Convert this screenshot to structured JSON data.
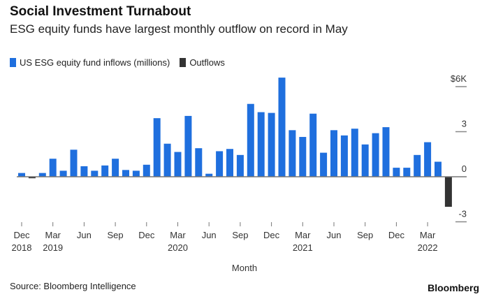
{
  "chart_data": {
    "type": "bar",
    "title": "Social Investment Turnabout",
    "subtitle": "ESG equity funds have largest monthly outflow on record in May",
    "legend": [
      {
        "name": "US ESG equity fund inflows (millions)",
        "color": "#1f6fde"
      },
      {
        "name": "Outflows",
        "color": "#333333"
      }
    ],
    "xlabel": "Month",
    "ylabel": "",
    "ylim": [
      -3,
      6
    ],
    "y_ticks": [
      {
        "value": 6,
        "label": "$6K"
      },
      {
        "value": 3,
        "label": "3"
      },
      {
        "value": 0,
        "label": "0"
      },
      {
        "value": -3,
        "label": "-3"
      }
    ],
    "x_ticks": [
      {
        "index": 0,
        "label": "Dec",
        "year": "2018"
      },
      {
        "index": 3,
        "label": "Mar",
        "year": "2019"
      },
      {
        "index": 6,
        "label": "Jun"
      },
      {
        "index": 9,
        "label": "Sep"
      },
      {
        "index": 12,
        "label": "Dec"
      },
      {
        "index": 15,
        "label": "Mar",
        "year": "2020"
      },
      {
        "index": 18,
        "label": "Jun"
      },
      {
        "index": 21,
        "label": "Sep"
      },
      {
        "index": 24,
        "label": "Dec"
      },
      {
        "index": 27,
        "label": "Mar",
        "year": "2021"
      },
      {
        "index": 30,
        "label": "Jun"
      },
      {
        "index": 33,
        "label": "Sep"
      },
      {
        "index": 36,
        "label": "Dec"
      },
      {
        "index": 39,
        "label": "Mar",
        "year": "2022"
      }
    ],
    "categories": [
      "Dec 2018",
      "Jan 2019",
      "Feb 2019",
      "Mar 2019",
      "Apr 2019",
      "May 2019",
      "Jun 2019",
      "Jul 2019",
      "Aug 2019",
      "Sep 2019",
      "Oct 2019",
      "Nov 2019",
      "Dec 2019",
      "Jan 2020",
      "Feb 2020",
      "Mar 2020",
      "Apr 2020",
      "May 2020",
      "Jun 2020",
      "Jul 2020",
      "Aug 2020",
      "Sep 2020",
      "Oct 2020",
      "Nov 2020",
      "Dec 2020",
      "Jan 2021",
      "Feb 2021",
      "Mar 2021",
      "Apr 2021",
      "May 2021",
      "Jun 2021",
      "Jul 2021",
      "Aug 2021",
      "Sep 2021",
      "Oct 2021",
      "Nov 2021",
      "Dec 2021",
      "Jan 2022",
      "Feb 2022",
      "Mar 2022",
      "Apr 2022",
      "May 2022"
    ],
    "values": [
      0.25,
      -0.1,
      0.25,
      1.2,
      0.4,
      1.8,
      0.7,
      0.4,
      0.75,
      1.2,
      0.45,
      0.4,
      0.8,
      3.9,
      2.2,
      1.65,
      4.05,
      1.9,
      0.2,
      1.7,
      1.85,
      1.45,
      4.85,
      4.3,
      4.25,
      6.6,
      3.1,
      2.65,
      4.2,
      1.6,
      3.1,
      2.75,
      3.2,
      2.15,
      2.9,
      3.3,
      0.6,
      0.6,
      1.45,
      2.3,
      1.0,
      -2.0
    ],
    "source": "Source: Bloomberg Intelligence",
    "brand": "Bloomberg"
  }
}
